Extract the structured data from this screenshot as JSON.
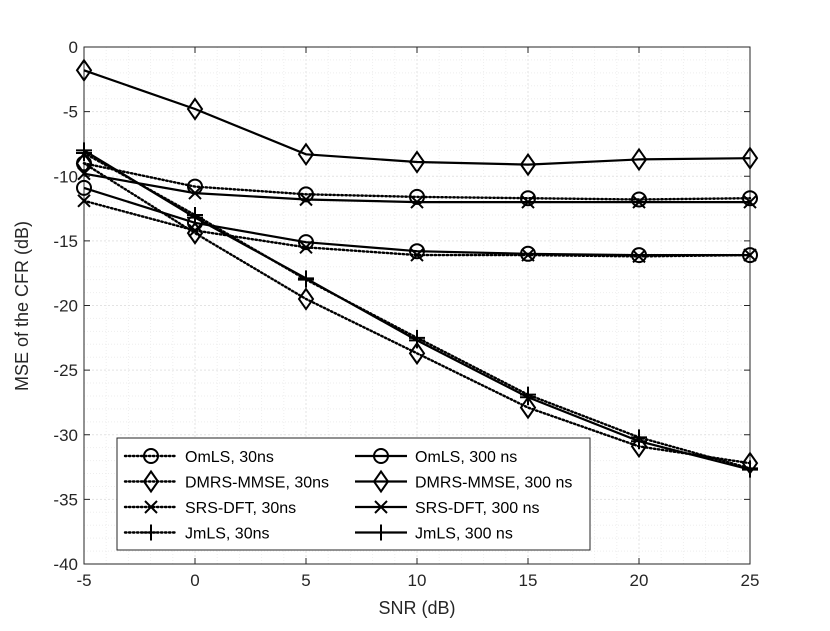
{
  "chart_data": {
    "type": "line",
    "title": "",
    "xlabel": "SNR (dB)",
    "ylabel": "MSE of the CFR (dB)",
    "xlim": [
      -5,
      25
    ],
    "ylim": [
      -40,
      0
    ],
    "x_ticks": [
      "-5",
      "0",
      "5",
      "10",
      "15",
      "20",
      "25"
    ],
    "y_ticks": [
      "0",
      "-5",
      "-10",
      "-15",
      "-20",
      "-25",
      "-30",
      "-35",
      "-40"
    ],
    "x_tick_values": [
      -5,
      0,
      5,
      10,
      15,
      20,
      25
    ],
    "y_tick_values": [
      0,
      -5,
      -10,
      -15,
      -20,
      -25,
      -30,
      -35,
      -40
    ],
    "grid": true,
    "minor_grid": true,
    "legend_position": "bottom-left",
    "x": [
      -5,
      0,
      5,
      10,
      15,
      20,
      25
    ],
    "series": [
      {
        "name": "OmLS, 30ns",
        "marker": "circle",
        "line": "dotted",
        "values": [
          -9.0,
          -10.8,
          -11.4,
          -11.6,
          -11.7,
          -11.8,
          -11.7
        ]
      },
      {
        "name": "OmLS, 300 ns",
        "marker": "circle",
        "line": "solid",
        "values": [
          -10.9,
          -13.6,
          -15.1,
          -15.8,
          -16.0,
          -16.1,
          -16.1
        ]
      },
      {
        "name": "DMRS-MMSE, 30ns",
        "marker": "diamond",
        "line": "dotted",
        "values": [
          -9.0,
          -14.4,
          -19.5,
          -23.7,
          -27.9,
          -30.9,
          -32.2
        ]
      },
      {
        "name": "DMRS-MMSE, 300 ns",
        "marker": "diamond",
        "line": "solid",
        "values": [
          -1.8,
          -4.8,
          -8.3,
          -8.9,
          -9.1,
          -8.7,
          -8.6
        ]
      },
      {
        "name": "SRS-DFT, 30ns",
        "marker": "x",
        "line": "dotted",
        "values": [
          -11.9,
          -14.2,
          -15.5,
          -16.1,
          -16.1,
          -16.2,
          -16.1
        ]
      },
      {
        "name": "SRS-DFT, 300 ns",
        "marker": "x",
        "line": "solid",
        "values": [
          -9.8,
          -11.3,
          -11.8,
          -12.0,
          -12.0,
          -12.0,
          -12.0
        ]
      },
      {
        "name": "JmLS, 30ns",
        "marker": "plus",
        "line": "dotted",
        "values": [
          -8.2,
          -13.0,
          -18.0,
          -22.5,
          -26.9,
          -30.2,
          -32.6
        ]
      },
      {
        "name": "JmLS, 300 ns",
        "marker": "plus",
        "line": "solid",
        "values": [
          -8.0,
          -13.2,
          -17.9,
          -22.7,
          -27.1,
          -30.5,
          -32.7
        ]
      }
    ],
    "legend_order": [
      0,
      1,
      2,
      3,
      4,
      5,
      6,
      7
    ],
    "colors": {
      "line": "#000000",
      "grid": "#e3e3e3",
      "minor_grid": "#eeeeee",
      "axis": "#262626"
    }
  }
}
